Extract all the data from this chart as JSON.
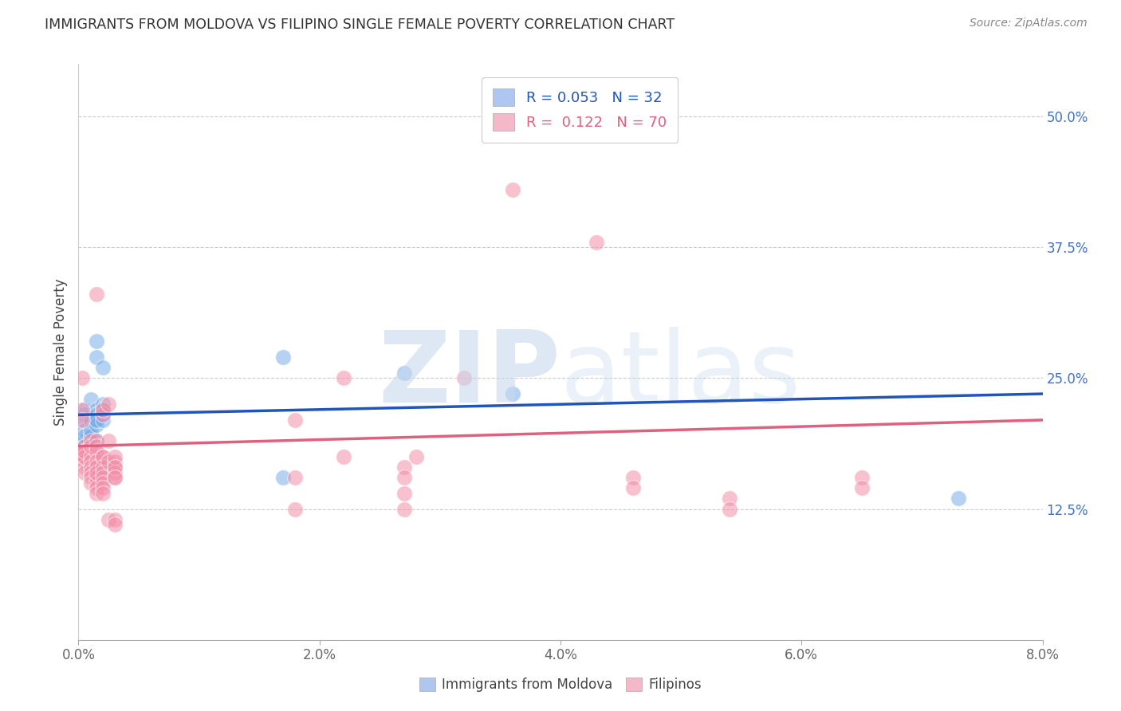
{
  "title": "IMMIGRANTS FROM MOLDOVA VS FILIPINO SINGLE FEMALE POVERTY CORRELATION CHART",
  "source": "Source: ZipAtlas.com",
  "ylabel_label": "Single Female Poverty",
  "xlim": [
    0.0,
    0.08
  ],
  "ylim": [
    0.0,
    0.55
  ],
  "xticks": [
    0.0,
    0.02,
    0.04,
    0.06,
    0.08
  ],
  "yticks": [
    0.125,
    0.25,
    0.375,
    0.5
  ],
  "ytick_labels": [
    "12.5%",
    "25.0%",
    "37.5%",
    "50.0%"
  ],
  "xtick_labels": [
    "0.0%",
    "2.0%",
    "4.0%",
    "6.0%",
    "8.0%"
  ],
  "moldova_color": "#7baee8",
  "filipinos_color": "#f48fa8",
  "moldova_line_color": "#2255bb",
  "filipinos_line_color": "#e06080",
  "ytick_color": "#4472c4",
  "watermark_color": "#c8d8ee",
  "legend_blue_fill": "#aec6f0",
  "legend_pink_fill": "#f4b8c8",
  "moldova_scatter": [
    [
      0.0005,
      0.215
    ],
    [
      0.0005,
      0.22
    ],
    [
      0.0005,
      0.185
    ],
    [
      0.0005,
      0.19
    ],
    [
      0.0005,
      0.21
    ],
    [
      0.0005,
      0.2
    ],
    [
      0.0005,
      0.185
    ],
    [
      0.0005,
      0.195
    ],
    [
      0.001,
      0.23
    ],
    [
      0.001,
      0.195
    ],
    [
      0.001,
      0.21
    ],
    [
      0.001,
      0.195
    ],
    [
      0.001,
      0.2
    ],
    [
      0.0015,
      0.27
    ],
    [
      0.0015,
      0.285
    ],
    [
      0.0015,
      0.22
    ],
    [
      0.0015,
      0.215
    ],
    [
      0.0015,
      0.21
    ],
    [
      0.0015,
      0.205
    ],
    [
      0.0015,
      0.21
    ],
    [
      0.0015,
      0.19
    ],
    [
      0.002,
      0.215
    ],
    [
      0.002,
      0.225
    ],
    [
      0.002,
      0.21
    ],
    [
      0.002,
      0.22
    ],
    [
      0.002,
      0.26
    ],
    [
      0.002,
      0.165
    ],
    [
      0.017,
      0.155
    ],
    [
      0.017,
      0.27
    ],
    [
      0.027,
      0.255
    ],
    [
      0.036,
      0.235
    ],
    [
      0.073,
      0.135
    ]
  ],
  "filipinos_scatter": [
    [
      0.0003,
      0.25
    ],
    [
      0.0003,
      0.22
    ],
    [
      0.0003,
      0.21
    ],
    [
      0.0005,
      0.185
    ],
    [
      0.0005,
      0.175
    ],
    [
      0.0005,
      0.18
    ],
    [
      0.0005,
      0.175
    ],
    [
      0.0005,
      0.17
    ],
    [
      0.0005,
      0.165
    ],
    [
      0.0005,
      0.16
    ],
    [
      0.0005,
      0.175
    ],
    [
      0.0005,
      0.18
    ],
    [
      0.001,
      0.19
    ],
    [
      0.001,
      0.175
    ],
    [
      0.001,
      0.17
    ],
    [
      0.001,
      0.165
    ],
    [
      0.001,
      0.16
    ],
    [
      0.001,
      0.155
    ],
    [
      0.001,
      0.15
    ],
    [
      0.001,
      0.185
    ],
    [
      0.0015,
      0.33
    ],
    [
      0.0015,
      0.19
    ],
    [
      0.0015,
      0.185
    ],
    [
      0.0015,
      0.18
    ],
    [
      0.0015,
      0.17
    ],
    [
      0.0015,
      0.165
    ],
    [
      0.0015,
      0.155
    ],
    [
      0.0015,
      0.15
    ],
    [
      0.0015,
      0.145
    ],
    [
      0.0015,
      0.14
    ],
    [
      0.0015,
      0.16
    ],
    [
      0.002,
      0.215
    ],
    [
      0.002,
      0.22
    ],
    [
      0.002,
      0.175
    ],
    [
      0.002,
      0.175
    ],
    [
      0.002,
      0.165
    ],
    [
      0.002,
      0.16
    ],
    [
      0.002,
      0.155
    ],
    [
      0.002,
      0.15
    ],
    [
      0.002,
      0.145
    ],
    [
      0.002,
      0.14
    ],
    [
      0.0025,
      0.225
    ],
    [
      0.0025,
      0.19
    ],
    [
      0.0025,
      0.17
    ],
    [
      0.0025,
      0.115
    ],
    [
      0.003,
      0.17
    ],
    [
      0.003,
      0.165
    ],
    [
      0.003,
      0.16
    ],
    [
      0.003,
      0.155
    ],
    [
      0.003,
      0.175
    ],
    [
      0.003,
      0.165
    ],
    [
      0.003,
      0.155
    ],
    [
      0.003,
      0.115
    ],
    [
      0.003,
      0.11
    ],
    [
      0.018,
      0.21
    ],
    [
      0.018,
      0.155
    ],
    [
      0.018,
      0.125
    ],
    [
      0.022,
      0.25
    ],
    [
      0.022,
      0.175
    ],
    [
      0.027,
      0.165
    ],
    [
      0.027,
      0.155
    ],
    [
      0.027,
      0.14
    ],
    [
      0.027,
      0.125
    ],
    [
      0.028,
      0.175
    ],
    [
      0.032,
      0.25
    ],
    [
      0.036,
      0.43
    ],
    [
      0.043,
      0.38
    ],
    [
      0.046,
      0.155
    ],
    [
      0.046,
      0.145
    ],
    [
      0.054,
      0.135
    ],
    [
      0.054,
      0.125
    ],
    [
      0.065,
      0.155
    ],
    [
      0.065,
      0.145
    ]
  ],
  "moldova_trend": [
    0.0,
    0.08,
    0.215,
    0.235
  ],
  "filipinos_trend": [
    0.0,
    0.08,
    0.185,
    0.21
  ]
}
